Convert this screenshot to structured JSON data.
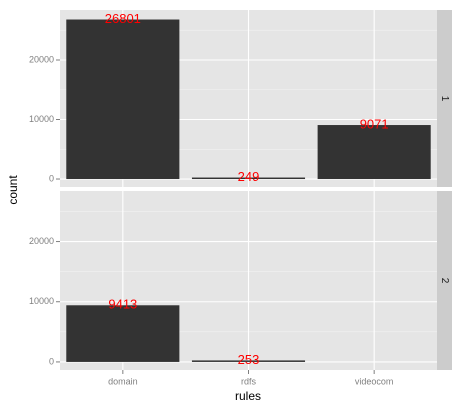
{
  "chart_data": {
    "type": "bar",
    "x_label": "rules",
    "y_label": "count",
    "categories": [
      "domain",
      "rdfs",
      "videocom"
    ],
    "series": [
      {
        "name": "1",
        "color": "#333333",
        "values": [
          26801,
          249,
          9071
        ]
      },
      {
        "name": "2",
        "color": "#333333",
        "values": [
          9413,
          253,
          null
        ]
      }
    ],
    "facet": "rows",
    "ylim": [
      -1340,
      28400
    ],
    "yticks": [
      0,
      10000,
      20000
    ],
    "minor_yticks": [
      5000,
      15000,
      25000
    ],
    "grid": true,
    "value_label_color": "#ff0000"
  }
}
